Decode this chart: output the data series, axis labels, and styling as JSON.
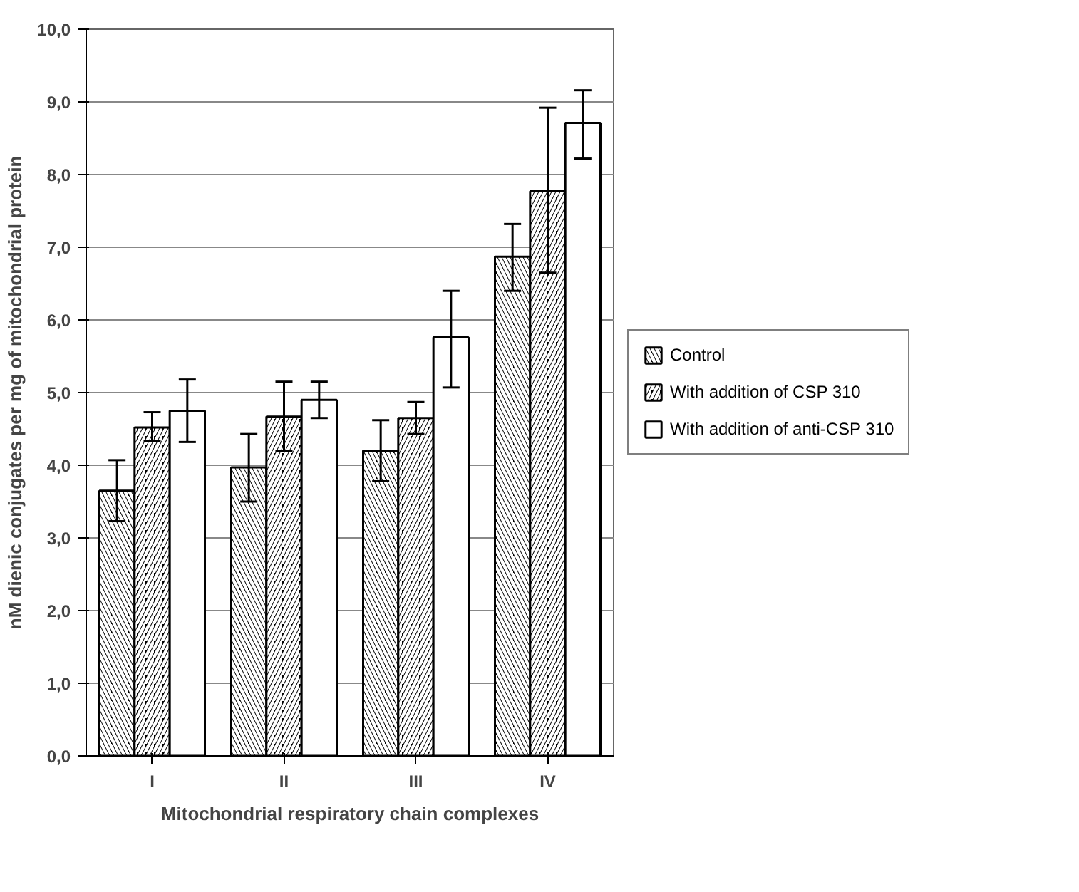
{
  "chart_data": {
    "type": "bar",
    "xlabel": "Mitochondrial respiratory chain complexes",
    "ylabel": "nM dienic conjugates per mg of mitochondrial protein",
    "categories": [
      "I",
      "II",
      "III",
      "IV"
    ],
    "series": [
      {
        "name": "Control",
        "color": "#000000",
        "values": [
          3.65,
          3.97,
          4.2,
          6.87
        ],
        "errors": [
          [
            3.23,
            4.07
          ],
          [
            3.5,
            4.43
          ],
          [
            3.78,
            4.62
          ],
          [
            6.4,
            7.32
          ]
        ]
      },
      {
        "name": "With addition of CSP 310",
        "color": "#000000",
        "values": [
          4.52,
          4.67,
          4.65,
          7.77
        ],
        "errors": [
          [
            4.33,
            4.73
          ],
          [
            4.2,
            5.15
          ],
          [
            4.43,
            4.87
          ],
          [
            6.65,
            8.92
          ]
        ]
      },
      {
        "name": "With addition of anti-CSP 310",
        "color": "#ffffff",
        "values": [
          4.75,
          4.9,
          5.76,
          8.71
        ],
        "errors": [
          [
            4.32,
            5.18
          ],
          [
            4.65,
            5.15
          ],
          [
            5.07,
            6.4
          ],
          [
            8.22,
            9.16
          ]
        ]
      }
    ],
    "ylim": [
      0,
      10
    ],
    "yticks": [
      {
        "value": 0,
        "label": "0,0"
      },
      {
        "value": 1,
        "label": "1,0"
      },
      {
        "value": 2,
        "label": "2,0"
      },
      {
        "value": 3,
        "label": "3,0"
      },
      {
        "value": 4,
        "label": "4,0"
      },
      {
        "value": 5,
        "label": "5,0"
      },
      {
        "value": 6,
        "label": "6,0"
      },
      {
        "value": 7,
        "label": "7,0"
      },
      {
        "value": 8,
        "label": "8,0"
      },
      {
        "value": 9,
        "label": "9,0"
      },
      {
        "value": 10,
        "label": "10,0"
      }
    ],
    "grid": "y",
    "legend": "right"
  }
}
